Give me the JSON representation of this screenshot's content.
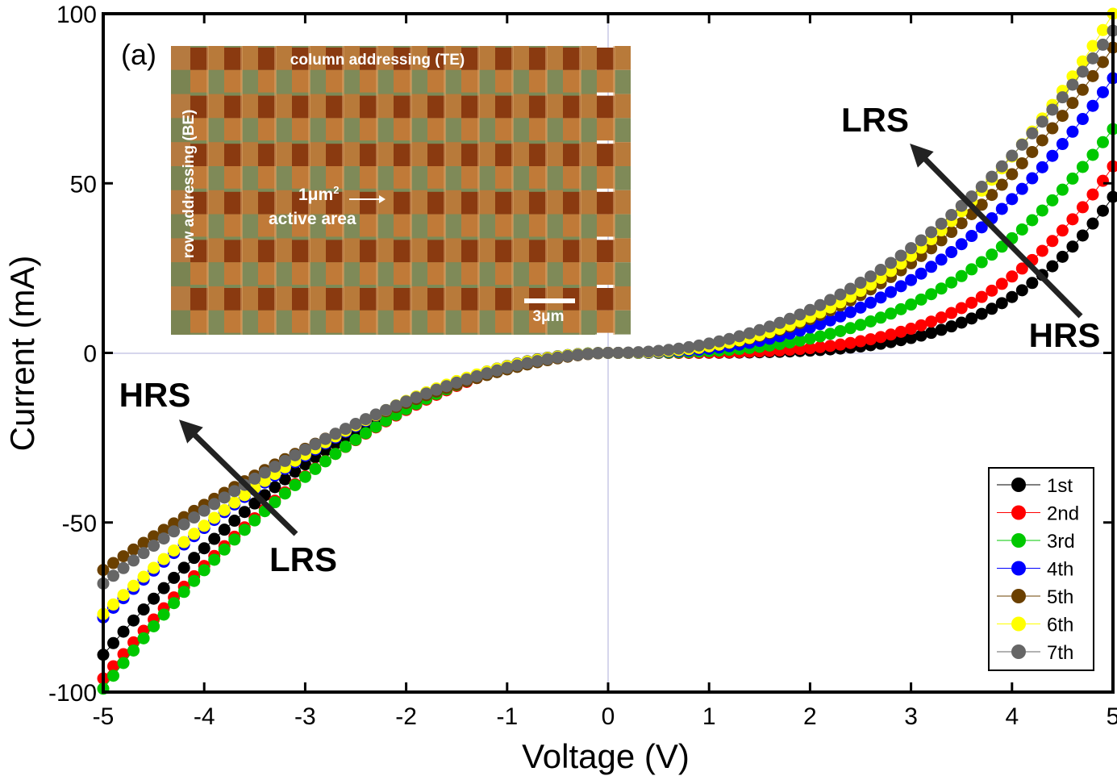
{
  "chart_data": {
    "type": "scatter",
    "title": "",
    "panel_label": "(a)",
    "xlabel": "Voltage (V)",
    "ylabel": "Current (mA)",
    "xlim": [
      -5,
      5
    ],
    "ylim": [
      -100,
      100
    ],
    "x_ticks": [
      -5,
      -4,
      -3,
      -2,
      -1,
      0,
      1,
      2,
      3,
      4,
      5
    ],
    "x_tick_labels": [
      "-5",
      "-4",
      "-3",
      "-2",
      "-1",
      "0",
      "1",
      "2",
      "3",
      "4",
      "5"
    ],
    "y_ticks": [
      -100,
      -50,
      0,
      50,
      100
    ],
    "y_tick_labels": [
      "-100",
      "-50",
      "0",
      "50",
      "100"
    ],
    "grid": false,
    "zero_lines": true,
    "legend_position": "bottom-right",
    "series": [
      {
        "name": "1st",
        "color": "#000000",
        "pos_max": 46,
        "pos_exp": 4.6,
        "neg_max": -89,
        "neg_exp": 1.95
      },
      {
        "name": "2nd",
        "color": "#ff0000",
        "pos_max": 55,
        "pos_exp": 4.0,
        "neg_max": -96,
        "neg_exp": 1.9
      },
      {
        "name": "3rd",
        "color": "#00c800",
        "pos_max": 66,
        "pos_exp": 3.0,
        "neg_max": -99,
        "neg_exp": 1.95
      },
      {
        "name": "4th",
        "color": "#0000ff",
        "pos_max": 81,
        "pos_exp": 2.6,
        "neg_max": -78,
        "neg_exp": 1.85
      },
      {
        "name": "5th",
        "color": "#6b4000",
        "pos_max": 90,
        "pos_exp": 2.4,
        "neg_max": -64,
        "neg_exp": 1.6
      },
      {
        "name": "6th",
        "color": "#ffff00",
        "pos_max": 100,
        "pos_exp": 2.45,
        "neg_max": -77,
        "neg_exp": 1.85
      },
      {
        "name": "7th",
        "color": "#666666",
        "pos_max": 95,
        "pos_exp": 2.2,
        "neg_max": -68,
        "neg_exp": 1.7
      }
    ],
    "annotations": [
      {
        "text": "LRS",
        "location": "upper-right"
      },
      {
        "text": "HRS",
        "location": "right"
      },
      {
        "text": "HRS",
        "location": "left"
      },
      {
        "text": "LRS",
        "location": "lower-left"
      }
    ],
    "inset": {
      "top_label": "column addressing (TE)",
      "side_label": "row addressing (BE)",
      "area_label_line1": "1μm",
      "area_label_sup": "2",
      "area_label_line2": "active area",
      "scale_label": "3μm"
    }
  }
}
